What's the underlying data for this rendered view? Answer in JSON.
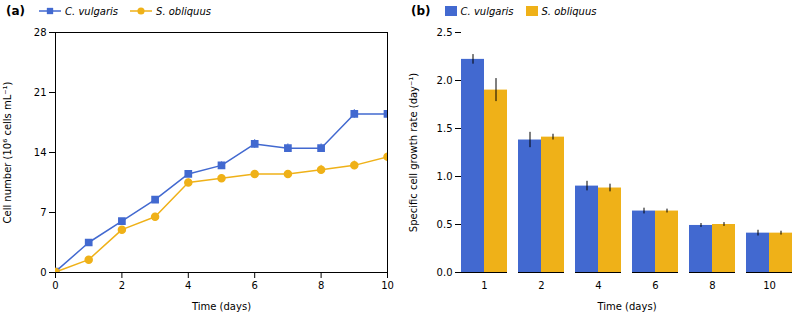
{
  "chart_data": [
    {
      "type": "line",
      "title": "(a)",
      "xlabel": "Time (days)",
      "ylabel": "Cell number (10⁶ cells mL⁻¹)",
      "x": [
        0,
        1,
        2,
        3,
        4,
        5,
        6,
        7,
        8,
        9,
        10
      ],
      "xlim": [
        0,
        10
      ],
      "xticks": [
        0,
        2,
        4,
        6,
        8,
        10
      ],
      "ylim": [
        0,
        28
      ],
      "yticks": [
        0,
        7,
        14,
        21,
        28
      ],
      "legend": "top",
      "series": [
        {
          "name": "C. vulgaris",
          "marker": "square",
          "values": [
            0.1,
            3.5,
            6.0,
            8.5,
            11.5,
            12.5,
            15.0,
            14.5,
            14.5,
            18.5,
            18.5
          ],
          "yerr": [
            0.1,
            0.3,
            0.3,
            0.3,
            0.4,
            0.4,
            0.5,
            0.5,
            0.5,
            0.5,
            0.5
          ]
        },
        {
          "name": "S. obliquus",
          "marker": "circle",
          "values": [
            0.05,
            1.5,
            5.0,
            6.5,
            10.5,
            11.0,
            11.5,
            11.5,
            12.0,
            12.5,
            13.5
          ],
          "yerr": [
            0.05,
            0.2,
            0.3,
            0.4,
            0.4,
            0.4,
            0.4,
            0.4,
            0.5,
            0.5,
            0.5
          ]
        }
      ]
    },
    {
      "type": "bar",
      "title": "(b)",
      "xlabel": "Time (days)",
      "ylabel": "Specific cell growth rate (day⁻¹)",
      "categories": [
        1,
        2,
        4,
        6,
        8,
        10
      ],
      "ylim": [
        0,
        2.5
      ],
      "yticks": [
        {
          "value": 0.0,
          "label": "0.0"
        },
        0.5,
        {
          "value": 1.0,
          "label": "1.0"
        },
        1.5,
        {
          "value": 2.0,
          "label": "2.0"
        },
        2.5
      ],
      "legend": "top",
      "series": [
        {
          "name": "C. vulgaris",
          "values": [
            2.22,
            1.38,
            0.9,
            0.64,
            0.49,
            0.41
          ],
          "yerr": [
            0.05,
            0.08,
            0.05,
            0.03,
            0.02,
            0.03
          ]
        },
        {
          "name": "S. obliquus",
          "values": [
            1.9,
            1.41,
            0.88,
            0.64,
            0.5,
            0.41
          ],
          "yerr": [
            0.12,
            0.03,
            0.04,
            0.02,
            0.02,
            0.02
          ]
        }
      ]
    }
  ]
}
